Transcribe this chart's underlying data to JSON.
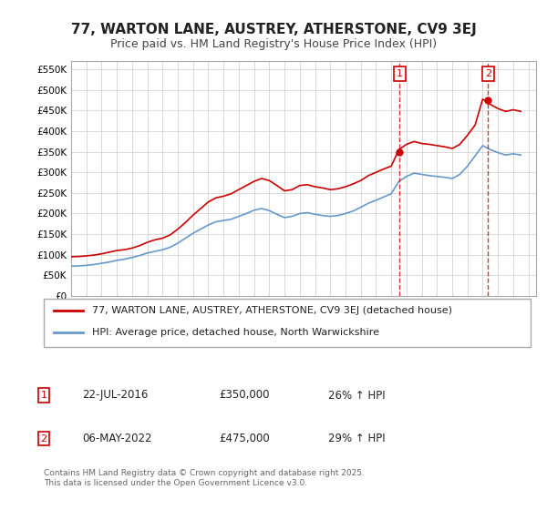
{
  "title": "77, WARTON LANE, AUSTREY, ATHERSTONE, CV9 3EJ",
  "subtitle": "Price paid vs. HM Land Registry's House Price Index (HPI)",
  "ylabel_ticks": [
    0,
    50000,
    100000,
    150000,
    200000,
    250000,
    300000,
    350000,
    400000,
    450000,
    500000,
    550000
  ],
  "ylim": [
    0,
    570000
  ],
  "xlim_start": 1995.0,
  "xlim_end": 2025.5,
  "red_line_color": "#cc0000",
  "blue_line_color": "#6699cc",
  "grid_color": "#cccccc",
  "background_color": "#ffffff",
  "sale1_date": 2016.55,
  "sale1_price": 350000,
  "sale2_date": 2022.35,
  "sale2_price": 475000,
  "legend_label1": "77, WARTON LANE, AUSTREY, ATHERSTONE, CV9 3EJ (detached house)",
  "legend_label2": "HPI: Average price, detached house, North Warwickshire",
  "annotation1_label": "1",
  "annotation1_date": "22-JUL-2016",
  "annotation1_price": "£350,000",
  "annotation1_hpi": "26% ↑ HPI",
  "annotation2_label": "2",
  "annotation2_date": "06-MAY-2022",
  "annotation2_price": "£475,000",
  "annotation2_hpi": "29% ↑ HPI",
  "footer": "Contains HM Land Registry data © Crown copyright and database right 2025.\nThis data is licensed under the Open Government Licence v3.0.",
  "hpi_red_data": {
    "years": [
      1995,
      1995.5,
      1996,
      1996.5,
      1997,
      1997.5,
      1998,
      1998.5,
      1999,
      1999.5,
      2000,
      2000.5,
      2001,
      2001.5,
      2002,
      2002.5,
      2003,
      2003.5,
      2004,
      2004.5,
      2005,
      2005.5,
      2006,
      2006.5,
      2007,
      2007.5,
      2008,
      2008.5,
      2009,
      2009.5,
      2010,
      2010.5,
      2011,
      2011.5,
      2012,
      2012.5,
      2013,
      2013.5,
      2014,
      2014.5,
      2015,
      2015.5,
      2016,
      2016.5,
      2017,
      2017.5,
      2018,
      2018.5,
      2019,
      2019.5,
      2020,
      2020.5,
      2021,
      2021.5,
      2022,
      2022.5,
      2023,
      2023.5,
      2024,
      2024.5
    ],
    "values": [
      95000,
      95500,
      97000,
      99000,
      102000,
      106000,
      110000,
      112000,
      116000,
      122000,
      130000,
      136000,
      140000,
      148000,
      162000,
      178000,
      196000,
      212000,
      228000,
      238000,
      242000,
      248000,
      258000,
      268000,
      278000,
      285000,
      280000,
      268000,
      255000,
      258000,
      268000,
      270000,
      265000,
      262000,
      258000,
      260000,
      265000,
      272000,
      280000,
      292000,
      300000,
      308000,
      315000,
      355000,
      368000,
      375000,
      370000,
      368000,
      365000,
      362000,
      358000,
      368000,
      390000,
      415000,
      478000,
      465000,
      455000,
      448000,
      452000,
      448000
    ]
  },
  "hpi_blue_data": {
    "years": [
      1995,
      1995.5,
      1996,
      1996.5,
      1997,
      1997.5,
      1998,
      1998.5,
      1999,
      1999.5,
      2000,
      2000.5,
      2001,
      2001.5,
      2002,
      2002.5,
      2003,
      2003.5,
      2004,
      2004.5,
      2005,
      2005.5,
      2006,
      2006.5,
      2007,
      2007.5,
      2008,
      2008.5,
      2009,
      2009.5,
      2010,
      2010.5,
      2011,
      2011.5,
      2012,
      2012.5,
      2013,
      2013.5,
      2014,
      2014.5,
      2015,
      2015.5,
      2016,
      2016.5,
      2017,
      2017.5,
      2018,
      2018.5,
      2019,
      2019.5,
      2020,
      2020.5,
      2021,
      2021.5,
      2022,
      2022.5,
      2023,
      2023.5,
      2024,
      2024.5
    ],
    "values": [
      72000,
      72500,
      74000,
      76000,
      79000,
      82000,
      86000,
      89000,
      93000,
      98000,
      104000,
      108000,
      112000,
      118000,
      128000,
      140000,
      152000,
      162000,
      172000,
      180000,
      183000,
      186000,
      193000,
      200000,
      208000,
      212000,
      207000,
      198000,
      190000,
      193000,
      200000,
      202000,
      198000,
      195000,
      193000,
      195000,
      200000,
      206000,
      215000,
      225000,
      232000,
      240000,
      248000,
      278000,
      290000,
      298000,
      295000,
      292000,
      290000,
      288000,
      285000,
      295000,
      315000,
      340000,
      365000,
      355000,
      348000,
      342000,
      345000,
      342000
    ]
  }
}
